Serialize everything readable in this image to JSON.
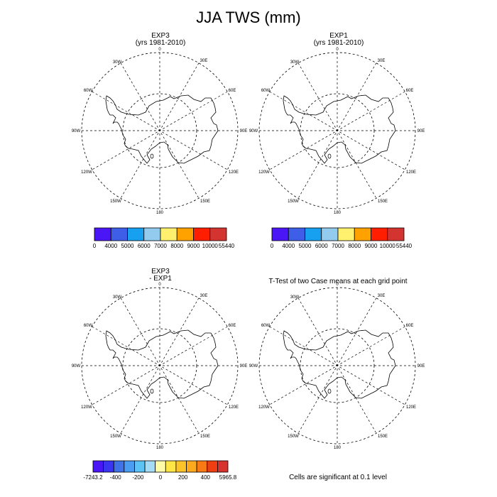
{
  "figure": {
    "title": "JJA TWS (mm)"
  },
  "panels": [
    {
      "line1": "EXP3",
      "line2": "(yrs 1981-2010)"
    },
    {
      "line1": "EXP1",
      "line2": "(yrs 1981-2010)"
    },
    {
      "line1": "EXP3",
      "line2": "- EXP1"
    },
    {
      "line1": "T-Test of two Case means at each grid point",
      "line2": ""
    }
  ],
  "map_labels": {
    "meridians": [
      "0",
      "30E",
      "60E",
      "90E",
      "120E",
      "150E",
      "180",
      "150W",
      "120W",
      "90W",
      "60W",
      "30W"
    ]
  },
  "colorbars": {
    "absolute": {
      "colors": [
        "#4b16f5",
        "#3f5ee8",
        "#17a0ef",
        "#93cbef",
        "#fff06e",
        "#ffa200",
        "#ff1e00",
        "#d4342f"
      ],
      "labels": [
        "0",
        "4000",
        "5000",
        "6000",
        "7000",
        "8000",
        "9000",
        "10000",
        "55440"
      ]
    },
    "difference": {
      "colors": [
        "#4b16f5",
        "#3a35f0",
        "#3e72e6",
        "#4a9df0",
        "#5dc3f4",
        "#a3dcf4",
        "#fffaa5",
        "#ffe646",
        "#fbc428",
        "#fbaa1e",
        "#f77a15",
        "#ef3f12",
        "#d8322e"
      ],
      "labels": [
        "-7243.2",
        "-400",
        "-200",
        "0",
        "200",
        "400",
        "5965.8"
      ]
    }
  },
  "significance_note": "Cells are significant at 0.1 level"
}
